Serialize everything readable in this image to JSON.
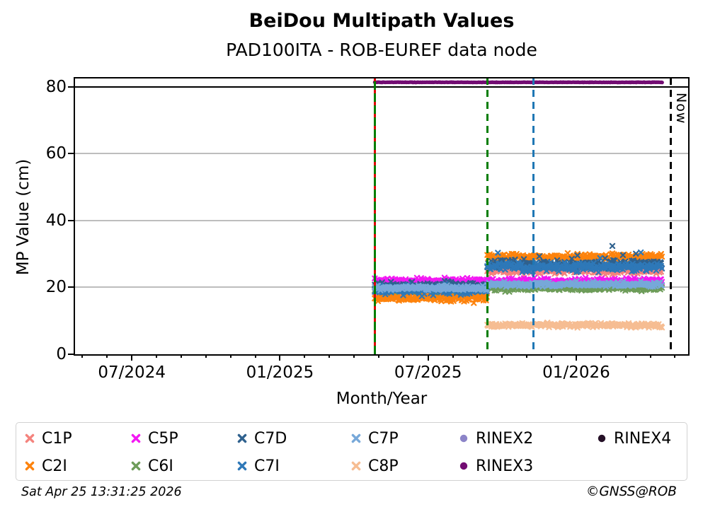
{
  "header": {
    "title": "BeiDou Multipath Values",
    "subtitle": "PAD100ITA - ROB-EUREF data node"
  },
  "chart_data": {
    "type": "scatter",
    "title": "BeiDou Multipath Values",
    "subtitle": "PAD100ITA - ROB-EUREF data node",
    "xlabel": "Month/Year",
    "ylabel": "MP Value (cm)",
    "x_axis": {
      "range_decimal_years": [
        2024.306,
        2026.38
      ],
      "major_ticks": [
        {
          "label": "07/2024",
          "t": 2024.5
        },
        {
          "label": "01/2025",
          "t": 2025.0
        },
        {
          "label": "07/2025",
          "t": 2025.5
        },
        {
          "label": "01/2026",
          "t": 2026.0
        }
      ],
      "minor_tick_every_months": 1,
      "now_label": "Now"
    },
    "y_axis": {
      "range": [
        0,
        82.75
      ],
      "ticks": [
        0,
        20,
        40,
        60,
        80
      ],
      "gridlines": [
        20,
        40,
        60
      ],
      "solid_black_line_at": 80,
      "grid_color": "#bdbdbd"
    },
    "event_lines": [
      {
        "t": 2025.32,
        "style": "solid",
        "color": "#007D00",
        "overlay_style": "dashed",
        "overlay_color": "#DD0000"
      },
      {
        "t": 2025.7,
        "style": "dashed",
        "color": "#007D00"
      },
      {
        "t": 2025.855,
        "style": "dashed",
        "color": "#1F77B4"
      },
      {
        "t": 2026.318,
        "style": "dashed",
        "color": "#000000",
        "label": "Now"
      }
    ],
    "series": [
      {
        "name": "C1P",
        "color": "#F4837D",
        "marker": "x",
        "segments": [
          {
            "t0": 2025.32,
            "t1": 2025.7,
            "mean": 18.2,
            "spread": 0.8
          },
          {
            "t0": 2025.7,
            "t1": 2026.29,
            "mean": 25.0,
            "spread": 0.8
          }
        ]
      },
      {
        "name": "C2I",
        "color": "#FD830D",
        "marker": "x",
        "segments": [
          {
            "t0": 2025.32,
            "t1": 2025.7,
            "mean": 16.9,
            "spread": 0.9
          },
          {
            "t0": 2025.7,
            "t1": 2026.29,
            "mean": 29.1,
            "spread": 0.8
          }
        ]
      },
      {
        "name": "C5P",
        "color": "#F318F3",
        "marker": "x",
        "segments": [
          {
            "t0": 2025.32,
            "t1": 2025.7,
            "mean": 21.9,
            "spread": 0.8
          },
          {
            "t0": 2025.7,
            "t1": 2026.29,
            "mean": 21.9,
            "spread": 0.7
          }
        ]
      },
      {
        "name": "C6I",
        "color": "#6D9C59",
        "marker": "x",
        "segments": [
          {
            "t0": 2025.32,
            "t1": 2025.7,
            "mean": 19.4,
            "spread": 0.7
          },
          {
            "t0": 2025.7,
            "t1": 2026.29,
            "mean": 19.8,
            "spread": 0.7
          }
        ]
      },
      {
        "name": "C7D",
        "color": "#2F618E",
        "marker": "x",
        "segments": [
          {
            "t0": 2025.32,
            "t1": 2025.7,
            "mean": 20.5,
            "spread": 1.0
          },
          {
            "t0": 2025.7,
            "t1": 2026.29,
            "mean": 27.0,
            "spread": 1.0,
            "outliers": true
          }
        ]
      },
      {
        "name": "C7I",
        "color": "#2E78B8",
        "marker": "x",
        "segments": [
          {
            "t0": 2025.32,
            "t1": 2025.7,
            "mean": 19.3,
            "spread": 1.2
          },
          {
            "t0": 2025.7,
            "t1": 2026.29,
            "mean": 26.1,
            "spread": 1.1,
            "outliers": true
          }
        ]
      },
      {
        "name": "C7P",
        "color": "#77A8D9",
        "marker": "x",
        "segments": [
          {
            "t0": 2025.32,
            "t1": 2025.7,
            "mean": 19.8,
            "spread": 0.6
          },
          {
            "t0": 2025.7,
            "t1": 2026.29,
            "mean": 20.9,
            "spread": 0.6
          }
        ]
      },
      {
        "name": "C8P",
        "color": "#F6BD92",
        "marker": "x",
        "segments": [
          {
            "t0": 2025.7,
            "t1": 2026.29,
            "mean": 8.7,
            "spread": 0.55
          }
        ]
      },
      {
        "name": "RINEX2",
        "color": "#8C84C8",
        "marker": "circle",
        "segments": []
      },
      {
        "name": "RINEX3",
        "color": "#730D73",
        "marker": "circle",
        "segments": [
          {
            "t0": 2025.32,
            "t1": 2026.29,
            "mean": 81.4,
            "spread": 0.05
          }
        ]
      },
      {
        "name": "RINEX4",
        "color": "#251027",
        "marker": "circle",
        "segments": []
      }
    ]
  },
  "legend": {
    "items": [
      {
        "label": "C1P"
      },
      {
        "label": "C2I"
      },
      {
        "label": "C5P"
      },
      {
        "label": "C6I"
      },
      {
        "label": "C7D"
      },
      {
        "label": "C7I"
      },
      {
        "label": "C7P"
      },
      {
        "label": "C8P"
      },
      {
        "label": "RINEX2"
      },
      {
        "label": "RINEX3"
      },
      {
        "label": "RINEX4"
      }
    ]
  },
  "footer": {
    "timestamp": "Sat Apr 25 13:31:25 2026",
    "credit": "©GNSS@ROB"
  }
}
